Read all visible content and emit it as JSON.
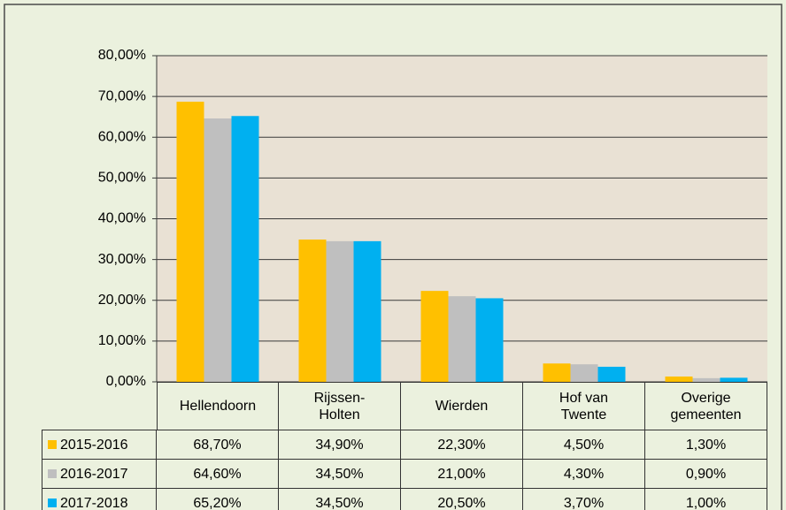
{
  "chart_data": {
    "type": "bar",
    "categories": [
      "Hellendoorn",
      "Rijssen-Holten",
      "Wierden",
      "Hof van Twente",
      "Overige gemeenten"
    ],
    "series": [
      {
        "name": "2015-2016",
        "color": "#ffc000",
        "values": [
          68.7,
          34.9,
          22.3,
          4.5,
          1.3
        ],
        "value_labels": [
          "68,70%",
          "34,90%",
          "22,30%",
          "4,50%",
          "1,30%"
        ]
      },
      {
        "name": "2016-2017",
        "color": "#bfbfbf",
        "values": [
          64.6,
          34.5,
          21.0,
          4.3,
          0.9
        ],
        "value_labels": [
          "64,60%",
          "34,50%",
          "21,00%",
          "4,30%",
          "0,90%"
        ]
      },
      {
        "name": "2017-2018",
        "color": "#00b0f0",
        "values": [
          65.2,
          34.5,
          20.5,
          3.7,
          1.0
        ],
        "value_labels": [
          "65,20%",
          "34,50%",
          "20,50%",
          "3,70%",
          "1,00%"
        ]
      }
    ],
    "ylim": [
      0,
      80
    ],
    "yticks": [
      {
        "value": 0,
        "label": "0,00%"
      },
      {
        "value": 10,
        "label": "10,00%"
      },
      {
        "value": 20,
        "label": "20,00%"
      },
      {
        "value": 30,
        "label": "30,00%"
      },
      {
        "value": 40,
        "label": "40,00%"
      },
      {
        "value": 50,
        "label": "50,00%"
      },
      {
        "value": 60,
        "label": "60,00%"
      },
      {
        "value": 70,
        "label": "70,00%"
      },
      {
        "value": 80,
        "label": "80,00%"
      }
    ],
    "grid": true
  }
}
